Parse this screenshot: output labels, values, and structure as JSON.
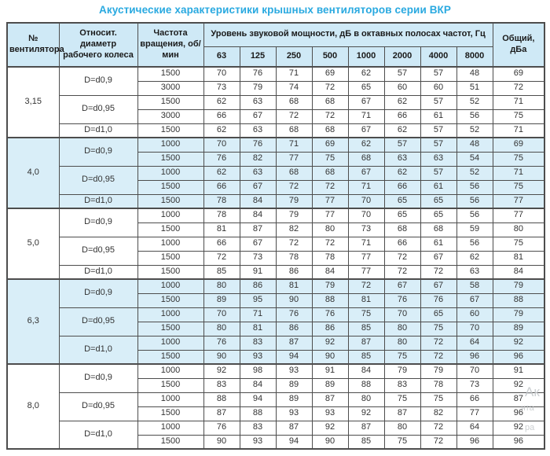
{
  "page": {
    "title": "Акустические характеристики крышных вентиляторов серии ВКР"
  },
  "colors": {
    "title": "#29a9e0",
    "header_bg": "#cfe9f6",
    "shaded_band_bg": "#d9eef8",
    "border": "#4d4d4d",
    "watermark": "#c3c7ca"
  },
  "watermark": {
    "fragments": [
      "Ак",
      "чта",
      "ра"
    ]
  },
  "table": {
    "headers": {
      "fan_number": "№ вентилятора",
      "diameter": "Относит. диаметр рабочего колеса",
      "speed": "Частота вращения, об/мин",
      "octave_group": "Уровень звуковой мощности, дБ в октавных полосах частот, Гц",
      "octave_bands": [
        "63",
        "125",
        "250",
        "500",
        "1000",
        "2000",
        "4000",
        "8000"
      ],
      "total": "Общий, дБа"
    },
    "groups": [
      {
        "fan": "3,15",
        "shaded": false,
        "subgroups": [
          {
            "diameter": "D=d0,9",
            "rows": [
              {
                "speed": "1500",
                "values": [
                  70,
                  76,
                  71,
                  69,
                  62,
                  57,
                  57,
                  48
                ],
                "total": 69
              },
              {
                "speed": "3000",
                "values": [
                  73,
                  79,
                  74,
                  72,
                  65,
                  60,
                  60,
                  51
                ],
                "total": 72
              }
            ]
          },
          {
            "diameter": "D=d0,95",
            "rows": [
              {
                "speed": "1500",
                "values": [
                  62,
                  63,
                  68,
                  68,
                  67,
                  62,
                  57,
                  52
                ],
                "total": 71
              },
              {
                "speed": "3000",
                "values": [
                  66,
                  67,
                  72,
                  72,
                  71,
                  66,
                  61,
                  56
                ],
                "total": 75
              }
            ]
          },
          {
            "diameter": "D=d1,0",
            "rows": [
              {
                "speed": "1500",
                "values": [
                  62,
                  63,
                  68,
                  68,
                  67,
                  62,
                  57,
                  52
                ],
                "total": 71
              }
            ]
          }
        ]
      },
      {
        "fan": "4,0",
        "shaded": true,
        "subgroups": [
          {
            "diameter": "D=d0,9",
            "rows": [
              {
                "speed": "1000",
                "values": [
                  70,
                  76,
                  71,
                  69,
                  62,
                  57,
                  57,
                  48
                ],
                "total": 69
              },
              {
                "speed": "1500",
                "values": [
                  76,
                  82,
                  77,
                  75,
                  68,
                  63,
                  63,
                  54
                ],
                "total": 75
              }
            ]
          },
          {
            "diameter": "D=d0,95",
            "rows": [
              {
                "speed": "1000",
                "values": [
                  62,
                  63,
                  68,
                  68,
                  67,
                  62,
                  57,
                  52
                ],
                "total": 71
              },
              {
                "speed": "1500",
                "values": [
                  66,
                  67,
                  72,
                  72,
                  71,
                  66,
                  61,
                  56
                ],
                "total": 75
              }
            ]
          },
          {
            "diameter": "D=d1,0",
            "rows": [
              {
                "speed": "1500",
                "values": [
                  78,
                  84,
                  79,
                  77,
                  70,
                  65,
                  65,
                  56
                ],
                "total": 77
              }
            ]
          }
        ]
      },
      {
        "fan": "5,0",
        "shaded": false,
        "subgroups": [
          {
            "diameter": "D=d0,9",
            "rows": [
              {
                "speed": "1000",
                "values": [
                  78,
                  84,
                  79,
                  77,
                  70,
                  65,
                  65,
                  56
                ],
                "total": 77
              },
              {
                "speed": "1500",
                "values": [
                  81,
                  87,
                  82,
                  80,
                  73,
                  68,
                  68,
                  59
                ],
                "total": 80
              }
            ]
          },
          {
            "diameter": "D=d0,95",
            "rows": [
              {
                "speed": "1000",
                "values": [
                  66,
                  67,
                  72,
                  72,
                  71,
                  66,
                  61,
                  56
                ],
                "total": 75
              },
              {
                "speed": "1500",
                "values": [
                  72,
                  73,
                  78,
                  78,
                  77,
                  72,
                  67,
                  62
                ],
                "total": 81
              }
            ]
          },
          {
            "diameter": "D=d1,0",
            "rows": [
              {
                "speed": "1500",
                "values": [
                  85,
                  91,
                  86,
                  84,
                  77,
                  72,
                  72,
                  63
                ],
                "total": 84
              }
            ]
          }
        ]
      },
      {
        "fan": "6,3",
        "shaded": true,
        "subgroups": [
          {
            "diameter": "D=d0,9",
            "rows": [
              {
                "speed": "1000",
                "values": [
                  80,
                  86,
                  81,
                  79,
                  72,
                  67,
                  67,
                  58
                ],
                "total": 79
              },
              {
                "speed": "1500",
                "values": [
                  89,
                  95,
                  90,
                  88,
                  81,
                  76,
                  76,
                  67
                ],
                "total": 88
              }
            ]
          },
          {
            "diameter": "D=d0,95",
            "rows": [
              {
                "speed": "1000",
                "values": [
                  70,
                  71,
                  76,
                  76,
                  75,
                  70,
                  65,
                  60
                ],
                "total": 79
              },
              {
                "speed": "1500",
                "values": [
                  80,
                  81,
                  86,
                  86,
                  85,
                  80,
                  75,
                  70
                ],
                "total": 89
              }
            ]
          },
          {
            "diameter": "D=d1,0",
            "rows": [
              {
                "speed": "1000",
                "values": [
                  76,
                  83,
                  87,
                  92,
                  87,
                  80,
                  72,
                  64
                ],
                "total": 92
              },
              {
                "speed": "1500",
                "values": [
                  90,
                  93,
                  94,
                  90,
                  85,
                  75,
                  72,
                  96
                ],
                "total": 96
              }
            ]
          }
        ]
      },
      {
        "fan": "8,0",
        "shaded": false,
        "subgroups": [
          {
            "diameter": "D=d0,9",
            "rows": [
              {
                "speed": "1000",
                "values": [
                  92,
                  98,
                  93,
                  91,
                  84,
                  79,
                  79,
                  70
                ],
                "total": 91
              },
              {
                "speed": "1500",
                "values": [
                  83,
                  84,
                  89,
                  89,
                  88,
                  83,
                  78,
                  73
                ],
                "total": 92
              }
            ]
          },
          {
            "diameter": "D=d0,95",
            "rows": [
              {
                "speed": "1000",
                "values": [
                  88,
                  94,
                  89,
                  87,
                  80,
                  75,
                  75,
                  66
                ],
                "total": 87
              },
              {
                "speed": "1500",
                "values": [
                  87,
                  88,
                  93,
                  93,
                  92,
                  87,
                  82,
                  77
                ],
                "total": 96
              }
            ]
          },
          {
            "diameter": "D=d1,0",
            "rows": [
              {
                "speed": "1000",
                "values": [
                  76,
                  83,
                  87,
                  92,
                  87,
                  80,
                  72,
                  64
                ],
                "total": 92
              },
              {
                "speed": "1500",
                "values": [
                  90,
                  93,
                  94,
                  90,
                  85,
                  75,
                  72,
                  96
                ],
                "total": 96
              }
            ]
          }
        ]
      }
    ]
  }
}
